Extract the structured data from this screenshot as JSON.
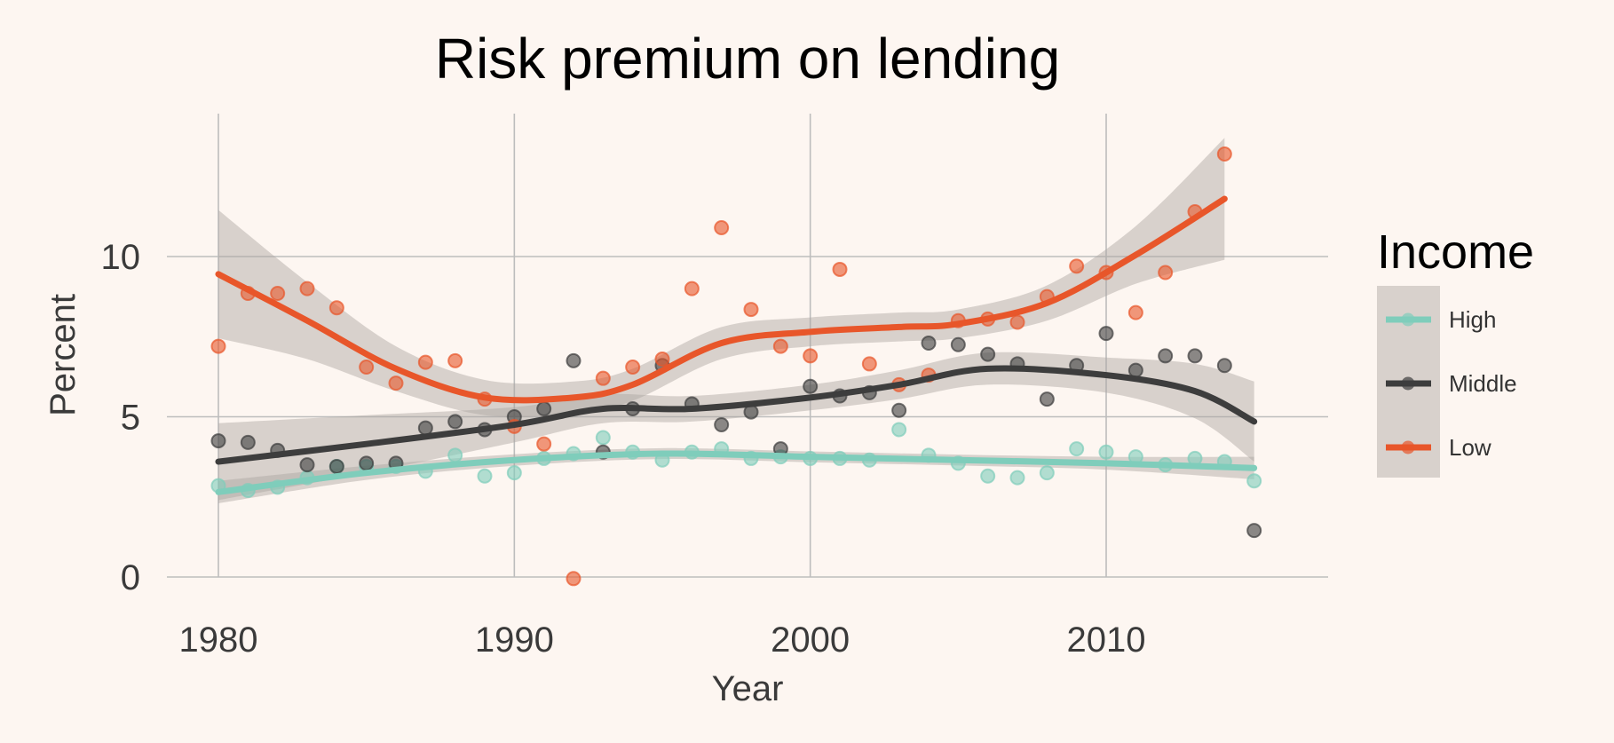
{
  "chart_data": {
    "type": "scatter",
    "title": "Risk premium on lending",
    "xlabel": "Year",
    "ylabel": "Percent",
    "xlim": [
      1977,
      2016.5
    ],
    "ylim": [
      -0.8,
      14.5
    ],
    "xticks": [
      1980,
      1990,
      2000,
      2010
    ],
    "yticks": [
      0,
      5,
      10
    ],
    "grid": true,
    "legend": {
      "title": "Income",
      "position": "right"
    },
    "series": [
      {
        "name": "High",
        "color": "#7fcdbb",
        "x": [
          1980,
          1981,
          1982,
          1983,
          1984,
          1985,
          1986,
          1987,
          1988,
          1989,
          1990,
          1991,
          1992,
          1993,
          1994,
          1995,
          1996,
          1997,
          1998,
          1999,
          2000,
          2001,
          2002,
          2003,
          2004,
          2005,
          2006,
          2007,
          2008,
          2009,
          2010,
          2011,
          2012,
          2013,
          2014,
          2015
        ],
        "y": [
          2.85,
          2.7,
          2.8,
          3.1,
          3.45,
          3.45,
          3.45,
          3.3,
          3.8,
          3.15,
          3.25,
          3.7,
          3.85,
          4.35,
          3.9,
          3.65,
          3.9,
          4.0,
          3.7,
          3.75,
          3.7,
          3.7,
          3.65,
          4.6,
          3.8,
          3.55,
          3.15,
          3.1,
          3.25,
          4.0,
          3.9,
          3.75,
          3.5,
          3.7,
          3.6,
          3.0
        ],
        "trend": [
          [
            1980,
            2.65
          ],
          [
            1985,
            3.25
          ],
          [
            1990,
            3.65
          ],
          [
            1995,
            3.85
          ],
          [
            2000,
            3.75
          ],
          [
            2005,
            3.65
          ],
          [
            2010,
            3.55
          ],
          [
            2015,
            3.4
          ]
        ],
        "band_width": [
          0.35,
          0.22,
          0.18,
          0.17,
          0.17,
          0.17,
          0.2,
          0.35
        ]
      },
      {
        "name": "Middle",
        "color": "#3d3d3d",
        "x": [
          1980,
          1981,
          1982,
          1983,
          1984,
          1985,
          1986,
          1987,
          1988,
          1989,
          1990,
          1991,
          1992,
          1993,
          1994,
          1995,
          1996,
          1997,
          1998,
          1999,
          2000,
          2001,
          2002,
          2003,
          2004,
          2005,
          2006,
          2007,
          2008,
          2009,
          2010,
          2011,
          2012,
          2013,
          2014,
          2015
        ],
        "y": [
          4.25,
          4.2,
          3.95,
          3.5,
          3.45,
          3.55,
          3.55,
          4.65,
          4.85,
          4.6,
          5.0,
          5.25,
          6.75,
          3.9,
          5.25,
          6.6,
          5.4,
          4.75,
          5.15,
          4.0,
          5.95,
          5.65,
          5.75,
          5.2,
          7.3,
          7.25,
          6.95,
          6.65,
          5.55,
          6.6,
          7.6,
          6.45,
          6.9,
          6.9,
          6.6,
          1.45
        ],
        "trend": [
          [
            1980,
            3.6
          ],
          [
            1985,
            4.15
          ],
          [
            1990,
            4.75
          ],
          [
            1993,
            5.25
          ],
          [
            1996,
            5.25
          ],
          [
            2000,
            5.6
          ],
          [
            2003,
            6.0
          ],
          [
            2006,
            6.5
          ],
          [
            2010,
            6.3
          ],
          [
            2013,
            5.8
          ],
          [
            2015,
            4.85
          ]
        ],
        "band_width": [
          1.2,
          0.9,
          0.55,
          0.45,
          0.4,
          0.4,
          0.45,
          0.5,
          0.55,
          0.85,
          1.25
        ]
      },
      {
        "name": "Low",
        "color": "#e8562a",
        "x": [
          1980,
          1981,
          1982,
          1983,
          1984,
          1985,
          1986,
          1987,
          1988,
          1989,
          1990,
          1991,
          1992,
          1993,
          1994,
          1995,
          1996,
          1997,
          1998,
          1999,
          2000,
          2001,
          2002,
          2003,
          2004,
          2005,
          2006,
          2007,
          2008,
          2009,
          2010,
          2011,
          2012,
          2013,
          2014
        ],
        "y": [
          7.2,
          8.85,
          8.85,
          9.0,
          8.4,
          6.55,
          6.05,
          6.7,
          6.75,
          5.55,
          4.7,
          4.15,
          -0.05,
          6.2,
          6.55,
          6.8,
          9.0,
          10.9,
          8.35,
          7.2,
          6.9,
          9.6,
          6.65,
          6.0,
          6.3,
          8.0,
          8.05,
          7.95,
          8.75,
          9.7,
          9.5,
          8.25,
          9.5,
          11.4,
          13.2
        ],
        "trend": [
          [
            1980,
            9.45
          ],
          [
            1983,
            8.0
          ],
          [
            1986,
            6.5
          ],
          [
            1989,
            5.6
          ],
          [
            1992,
            5.6
          ],
          [
            1994,
            6.0
          ],
          [
            1997,
            7.3
          ],
          [
            2000,
            7.65
          ],
          [
            2003,
            7.8
          ],
          [
            2005,
            7.9
          ],
          [
            2008,
            8.55
          ],
          [
            2011,
            10.05
          ],
          [
            2014,
            11.8
          ]
        ],
        "band_width": [
          2.0,
          1.2,
          0.7,
          0.55,
          0.5,
          0.5,
          0.5,
          0.45,
          0.45,
          0.45,
          0.55,
          0.9,
          1.9
        ]
      }
    ]
  }
}
